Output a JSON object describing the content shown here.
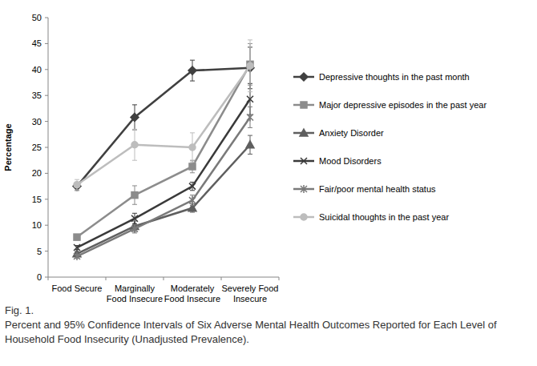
{
  "chart_data": {
    "type": "line",
    "figure_label": "Fig. 1.",
    "caption": "Percent and 95% Confidence Intervals of Six Adverse Mental Health Outcomes Reported for Each Level of Household Food Insecurity (Unadjusted Prevalence).",
    "y_label": "Percentage",
    "categories": [
      "Food Secure",
      "Marginally Food Insecure",
      "Moderately Food Insecure",
      "Severely Food Insecure"
    ],
    "ylim": [
      0,
      50
    ],
    "yticks": [
      0,
      5,
      10,
      15,
      20,
      25,
      30,
      35,
      40,
      45,
      50
    ],
    "grid": false,
    "legend": "right",
    "series": [
      {
        "name": "Depressive thoughts in the past month",
        "color": "#404040",
        "marker": "diamond",
        "values": [
          17.5,
          30.8,
          39.8,
          40.3
        ],
        "errors": [
          0.8,
          2.4,
          2.0,
          4.0
        ]
      },
      {
        "name": "Major depressive episodes in the past year",
        "color": "#8c8c8c",
        "marker": "square",
        "values": [
          7.7,
          15.8,
          21.3,
          41.0
        ],
        "errors": [
          0.5,
          1.8,
          1.2,
          4.0
        ]
      },
      {
        "name": "Anxiety Disorder",
        "color": "#5f5f5f",
        "marker": "triangle",
        "values": [
          4.5,
          9.8,
          13.3,
          25.5
        ],
        "errors": [
          0.4,
          1.0,
          0.8,
          1.8
        ]
      },
      {
        "name": "Mood Disorders",
        "color": "#3a3a3a",
        "marker": "x",
        "values": [
          5.7,
          11.3,
          17.5,
          34.3
        ],
        "errors": [
          0.4,
          1.0,
          0.8,
          3.0
        ]
      },
      {
        "name": "Fair/poor mental health status",
        "color": "#7a7a7a",
        "marker": "star",
        "values": [
          4.0,
          9.3,
          14.8,
          30.8
        ],
        "errors": [
          0.4,
          0.8,
          1.0,
          2.0
        ]
      },
      {
        "name": "Suicidal thoughts in the past year",
        "color": "#bdbdbd",
        "marker": "circle",
        "values": [
          17.8,
          25.5,
          25.0,
          40.7
        ],
        "errors": [
          1.0,
          3.0,
          2.8,
          5.0
        ]
      }
    ]
  }
}
